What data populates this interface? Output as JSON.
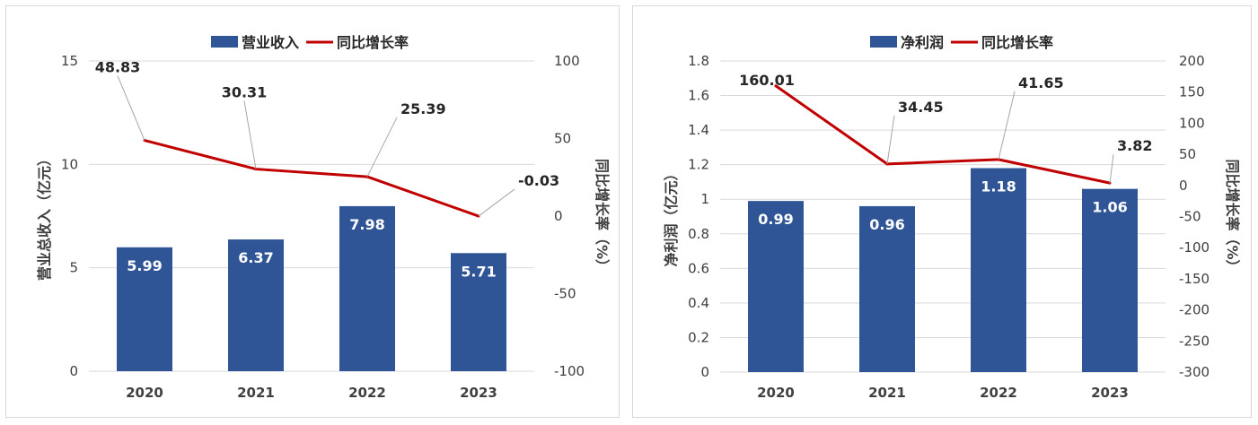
{
  "colors": {
    "bar": "#2f5597",
    "line": "#c00000",
    "grid": "#d9d9d9",
    "leader": "#a6a6a6"
  },
  "chart_data": [
    {
      "type": "bar+line",
      "categories": [
        "2020",
        "2021",
        "2022",
        "2023"
      ],
      "series": [
        {
          "name": "营业收入",
          "type": "bar",
          "axis": "left",
          "values": [
            5.99,
            6.37,
            7.98,
            5.71
          ],
          "labels": [
            "5.99",
            "6.37",
            "7.98",
            "5.71"
          ]
        },
        {
          "name": "同比增长率",
          "type": "line",
          "axis": "right",
          "values": [
            48.83,
            30.31,
            25.39,
            -0.03
          ],
          "labels": [
            "48.83",
            "30.31",
            "25.39",
            "-0.03"
          ]
        }
      ],
      "ylabel": "营业总收入（亿元）",
      "y2label": "同比增长率（%）",
      "ylim": [
        0,
        15
      ],
      "y2lim": [
        -100,
        100
      ],
      "yticks": [
        "0",
        "5",
        "10",
        "15"
      ],
      "y2ticks": [
        "-100",
        "-50",
        "0",
        "50",
        "100"
      ],
      "grid": true,
      "legend": "top-center"
    },
    {
      "type": "bar+line",
      "categories": [
        "2020",
        "2021",
        "2022",
        "2023"
      ],
      "series": [
        {
          "name": "净利润",
          "type": "bar",
          "axis": "left",
          "values": [
            0.99,
            0.96,
            1.18,
            1.06
          ],
          "labels": [
            "0.99",
            "0.96",
            "1.18",
            "1.06"
          ]
        },
        {
          "name": "同比增长率",
          "type": "line",
          "axis": "right",
          "values": [
            160.01,
            34.45,
            41.65,
            3.82
          ],
          "labels": [
            "160.01",
            "34.45",
            "41.65",
            "3.82"
          ]
        }
      ],
      "ylabel": "净利润（亿元）",
      "y2label": "同比增长率（%）",
      "ylim": [
        0,
        1.8
      ],
      "y2lim": [
        -300,
        200
      ],
      "yticks": [
        "0",
        "0.2",
        "0.4",
        "0.6",
        "0.8",
        "1",
        "1.2",
        "1.4",
        "1.6",
        "1.8"
      ],
      "y2ticks": [
        "-300",
        "-250",
        "-200",
        "-150",
        "-100",
        "-50",
        "0",
        "50",
        "100",
        "150",
        "200"
      ],
      "grid": true,
      "legend": "top-center"
    }
  ]
}
